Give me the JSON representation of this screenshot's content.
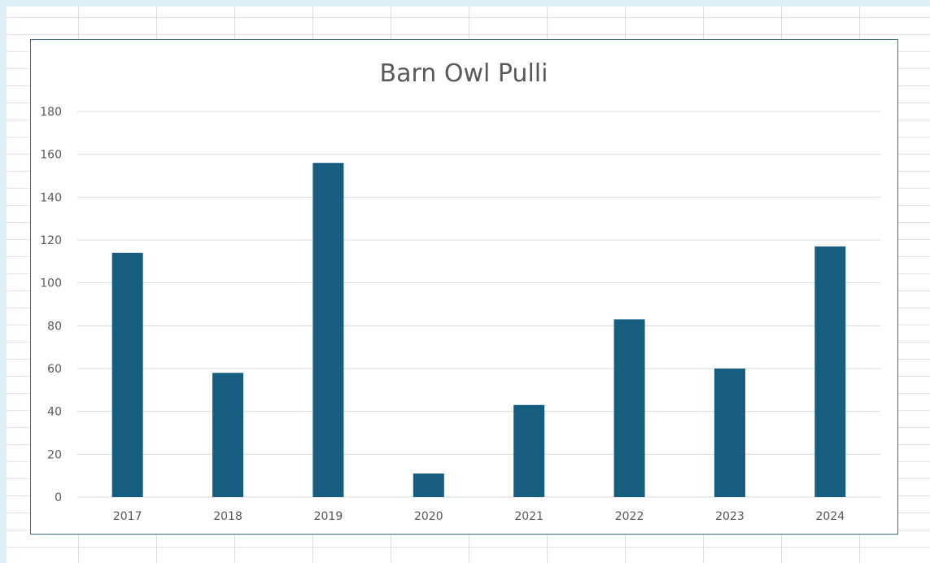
{
  "chart_data": {
    "type": "bar",
    "title": "Barn Owl Pulli",
    "xlabel": "",
    "ylabel": "",
    "categories": [
      "2017",
      "2018",
      "2019",
      "2020",
      "2021",
      "2022",
      "2023",
      "2024"
    ],
    "values": [
      114,
      58,
      156,
      11,
      43,
      83,
      60,
      117
    ],
    "ylim": [
      0,
      180
    ],
    "yticks": [
      0,
      20,
      40,
      60,
      80,
      100,
      120,
      140,
      160,
      180
    ],
    "grid": true,
    "legend": "none",
    "bar_color": "#165e80",
    "gridline_color": "#d9d9d9",
    "frame_color": "#3d6f87",
    "text_color": "#595959"
  }
}
